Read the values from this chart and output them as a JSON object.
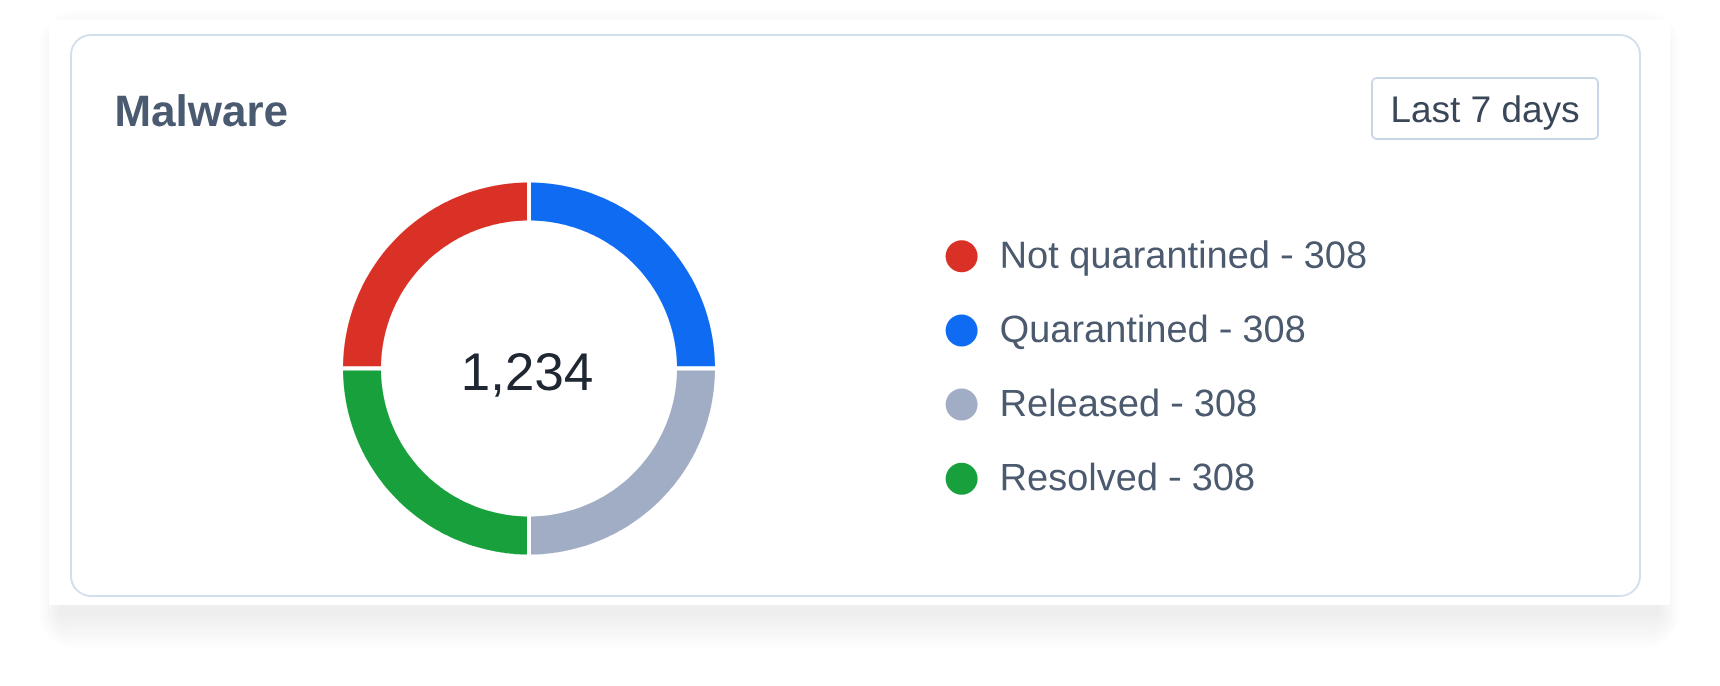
{
  "chart_data": {
    "type": "donut",
    "title": "Malware",
    "categories": [
      "Not quarantined",
      "Quarantined",
      "Released",
      "Resolved"
    ],
    "values": [
      308,
      308,
      308,
      308
    ],
    "value_labels": [
      "308",
      "308",
      "308",
      "308"
    ],
    "colors": [
      "#d93126",
      "#0f6cf2",
      "#a1adc5",
      "#18a03c"
    ],
    "annotations": [
      "1,234",
      "Last 7 days"
    ],
    "legend": "right"
  }
}
